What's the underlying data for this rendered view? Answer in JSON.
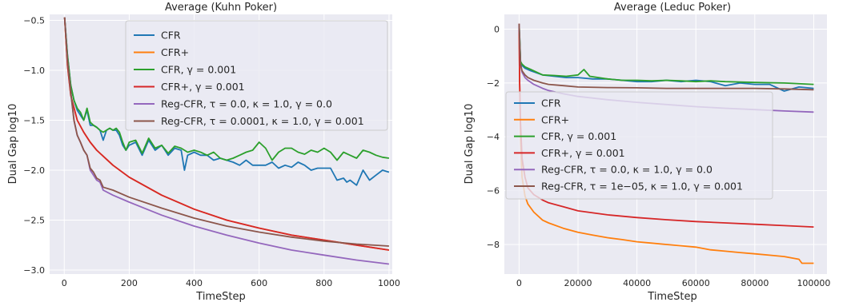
{
  "chart_data": [
    {
      "type": "line",
      "title": "Average (Kuhn Poker)",
      "xlabel": "TimeStep",
      "ylabel": "Dual Gap log10",
      "xlim": [
        -45,
        1010
      ],
      "ylim": [
        -3.04,
        -0.44
      ],
      "xticks": [
        0,
        200,
        400,
        600,
        800,
        1000
      ],
      "xtick_labels": [
        "0",
        "200",
        "400",
        "600",
        "800",
        "1000"
      ],
      "yticks": [
        -0.5,
        -1.0,
        -1.5,
        -2.0,
        -2.5,
        -3.0
      ],
      "ytick_labels": [
        "−0.5",
        "−1.0",
        "−1.5",
        "−2.0",
        "−2.5",
        "−3.0"
      ],
      "grid": true,
      "legend_position": "top-right",
      "series": [
        {
          "name": "CFR",
          "color": "#1f77b4",
          "x": [
            1,
            10,
            20,
            30,
            40,
            50,
            60,
            70,
            80,
            90,
            100,
            110,
            120,
            130,
            140,
            150,
            160,
            170,
            180,
            190,
            200,
            220,
            240,
            260,
            280,
            300,
            320,
            340,
            360,
            370,
            380,
            400,
            420,
            440,
            460,
            480,
            500,
            520,
            540,
            560,
            580,
            600,
            620,
            640,
            660,
            680,
            700,
            720,
            740,
            760,
            780,
            800,
            820,
            840,
            860,
            870,
            880,
            900,
            920,
            940,
            960,
            980,
            1000
          ],
          "y": [
            -0.47,
            -0.85,
            -1.15,
            -1.3,
            -1.4,
            -1.45,
            -1.5,
            -1.4,
            -1.55,
            -1.55,
            -1.57,
            -1.6,
            -1.7,
            -1.6,
            -1.58,
            -1.6,
            -1.6,
            -1.65,
            -1.75,
            -1.8,
            -1.75,
            -1.72,
            -1.85,
            -1.7,
            -1.8,
            -1.75,
            -1.85,
            -1.78,
            -1.8,
            -2.0,
            -1.85,
            -1.82,
            -1.85,
            -1.85,
            -1.9,
            -1.88,
            -1.9,
            -1.92,
            -1.95,
            -1.9,
            -1.95,
            -1.95,
            -1.95,
            -1.92,
            -1.98,
            -1.95,
            -1.97,
            -1.92,
            -1.95,
            -2.0,
            -1.98,
            -1.98,
            -1.98,
            -2.1,
            -2.08,
            -2.12,
            -2.1,
            -2.15,
            -2.0,
            -2.1,
            -2.05,
            -2.0,
            -2.02
          ]
        },
        {
          "name": "CFR+",
          "color": "#ff7f0e",
          "x": [
            1,
            10,
            20,
            40,
            60,
            80,
            100,
            150,
            200,
            300,
            400,
            500,
            600,
            700,
            800,
            900,
            1000
          ],
          "y": [
            -0.47,
            -0.95,
            -1.25,
            -1.5,
            -1.62,
            -1.72,
            -1.8,
            -1.95,
            -2.07,
            -2.25,
            -2.39,
            -2.5,
            -2.58,
            -2.65,
            -2.7,
            -2.75,
            -2.8
          ]
        },
        {
          "name": "CFR, γ = 0.001",
          "color": "#2ca02c",
          "x": [
            1,
            10,
            20,
            30,
            40,
            50,
            60,
            70,
            80,
            90,
            100,
            110,
            120,
            130,
            140,
            150,
            160,
            170,
            180,
            190,
            200,
            220,
            240,
            260,
            280,
            300,
            320,
            340,
            360,
            380,
            400,
            420,
            440,
            460,
            480,
            500,
            520,
            540,
            560,
            580,
            600,
            620,
            640,
            660,
            680,
            700,
            720,
            740,
            760,
            780,
            800,
            820,
            840,
            860,
            880,
            900,
            920,
            940,
            960,
            980,
            1000
          ],
          "y": [
            -0.47,
            -0.85,
            -1.15,
            -1.3,
            -1.38,
            -1.42,
            -1.5,
            -1.38,
            -1.52,
            -1.55,
            -1.57,
            -1.6,
            -1.62,
            -1.6,
            -1.58,
            -1.6,
            -1.58,
            -1.62,
            -1.72,
            -1.8,
            -1.72,
            -1.7,
            -1.83,
            -1.68,
            -1.78,
            -1.75,
            -1.83,
            -1.76,
            -1.78,
            -1.82,
            -1.8,
            -1.82,
            -1.85,
            -1.82,
            -1.88,
            -1.9,
            -1.88,
            -1.85,
            -1.82,
            -1.8,
            -1.72,
            -1.78,
            -1.9,
            -1.82,
            -1.78,
            -1.78,
            -1.82,
            -1.84,
            -1.8,
            -1.82,
            -1.78,
            -1.82,
            -1.9,
            -1.82,
            -1.85,
            -1.88,
            -1.8,
            -1.82,
            -1.85,
            -1.87,
            -1.88
          ]
        },
        {
          "name": "CFR+, γ = 0.001",
          "color": "#d62728",
          "x": [
            1,
            10,
            20,
            40,
            60,
            80,
            100,
            150,
            200,
            300,
            400,
            500,
            600,
            700,
            800,
            900,
            1000
          ],
          "y": [
            -0.47,
            -0.95,
            -1.25,
            -1.5,
            -1.62,
            -1.72,
            -1.8,
            -1.95,
            -2.07,
            -2.25,
            -2.39,
            -2.5,
            -2.58,
            -2.65,
            -2.7,
            -2.75,
            -2.8
          ]
        },
        {
          "name": "Reg-CFR, τ = 0.0, κ = 1.0, γ = 0.0",
          "color": "#9467bd",
          "x": [
            1,
            10,
            20,
            30,
            40,
            50,
            60,
            70,
            80,
            90,
            100,
            110,
            120,
            150,
            200,
            300,
            400,
            500,
            600,
            700,
            800,
            900,
            1000
          ],
          "y": [
            -0.47,
            -0.9,
            -1.22,
            -1.5,
            -1.65,
            -1.72,
            -1.8,
            -1.85,
            -2.0,
            -2.05,
            -2.1,
            -2.12,
            -2.2,
            -2.25,
            -2.32,
            -2.45,
            -2.56,
            -2.65,
            -2.73,
            -2.8,
            -2.85,
            -2.9,
            -2.94
          ]
        },
        {
          "name": "Reg-CFR, τ = 0.0001, κ = 1.0, γ = 0.001",
          "color": "#8c564b",
          "x": [
            1,
            10,
            20,
            30,
            40,
            50,
            60,
            70,
            80,
            90,
            100,
            110,
            120,
            150,
            200,
            300,
            400,
            500,
            600,
            700,
            800,
            900,
            1000
          ],
          "y": [
            -0.47,
            -0.9,
            -1.22,
            -1.5,
            -1.65,
            -1.72,
            -1.8,
            -1.85,
            -1.98,
            -2.02,
            -2.08,
            -2.1,
            -2.17,
            -2.2,
            -2.27,
            -2.38,
            -2.48,
            -2.56,
            -2.62,
            -2.67,
            -2.71,
            -2.74,
            -2.76
          ]
        }
      ]
    },
    {
      "type": "line",
      "title": "Average (Leduc Poker)",
      "xlabel": "TimeStep",
      "ylabel": "Dual Gap log10",
      "xlim": [
        -5000,
        104500
      ],
      "ylim": [
        -9.1,
        0.55
      ],
      "xticks": [
        0,
        20000,
        40000,
        60000,
        80000,
        100000
      ],
      "xtick_labels": [
        "0",
        "20000",
        "40000",
        "60000",
        "80000",
        "100000"
      ],
      "yticks": [
        0,
        -2,
        -4,
        -6,
        -8
      ],
      "ytick_labels": [
        "0",
        "−2",
        "−4",
        "−6",
        "−8"
      ],
      "grid": true,
      "legend_position": "center-left",
      "series": [
        {
          "name": "CFR",
          "color": "#1f77b4",
          "x": [
            1,
            200,
            500,
            1000,
            2000,
            4000,
            8000,
            12000,
            16000,
            20000,
            25000,
            30000,
            35000,
            40000,
            45000,
            50000,
            55000,
            60000,
            65000,
            70000,
            75000,
            80000,
            85000,
            90000,
            95000,
            100000
          ],
          "y": [
            0.2,
            -0.3,
            -1.2,
            -1.35,
            -1.45,
            -1.55,
            -1.7,
            -1.75,
            -1.8,
            -1.8,
            -1.85,
            -1.85,
            -1.9,
            -1.95,
            -1.95,
            -1.9,
            -1.95,
            -1.9,
            -1.95,
            -2.1,
            -2.0,
            -2.05,
            -2.05,
            -2.3,
            -2.15,
            -2.2
          ]
        },
        {
          "name": "CFR+",
          "color": "#ff7f0e",
          "x": [
            1,
            200,
            500,
            1000,
            2000,
            3000,
            5000,
            8000,
            10000,
            15000,
            20000,
            25000,
            30000,
            35000,
            40000,
            45000,
            50000,
            55000,
            60000,
            65000,
            70000,
            75000,
            80000,
            85000,
            90000,
            95000,
            96000,
            100000
          ],
          "y": [
            0.2,
            -2.0,
            -4.0,
            -5.5,
            -6.2,
            -6.5,
            -6.8,
            -7.1,
            -7.2,
            -7.4,
            -7.55,
            -7.65,
            -7.75,
            -7.82,
            -7.9,
            -7.95,
            -8.0,
            -8.05,
            -8.1,
            -8.2,
            -8.25,
            -8.3,
            -8.35,
            -8.4,
            -8.45,
            -8.55,
            -8.7,
            -8.7
          ]
        },
        {
          "name": "CFR, γ = 0.001",
          "color": "#2ca02c",
          "x": [
            1,
            200,
            500,
            1000,
            2000,
            4000,
            8000,
            12000,
            16000,
            20000,
            22000,
            24000,
            30000,
            35000,
            40000,
            45000,
            50000,
            55000,
            60000,
            65000,
            70000,
            80000,
            90000,
            100000
          ],
          "y": [
            0.2,
            -0.3,
            -1.2,
            -1.3,
            -1.4,
            -1.5,
            -1.7,
            -1.72,
            -1.75,
            -1.7,
            -1.5,
            -1.75,
            -1.85,
            -1.9,
            -1.9,
            -1.92,
            -1.9,
            -1.92,
            -1.95,
            -1.92,
            -1.95,
            -1.98,
            -2.0,
            -2.05
          ]
        },
        {
          "name": "CFR+, γ = 0.001",
          "color": "#d62728",
          "x": [
            1,
            200,
            500,
            1000,
            2000,
            3000,
            5000,
            8000,
            10000,
            15000,
            20000,
            30000,
            40000,
            50000,
            60000,
            70000,
            80000,
            90000,
            100000
          ],
          "y": [
            0.2,
            -2.0,
            -3.5,
            -4.8,
            -5.5,
            -5.9,
            -6.15,
            -6.35,
            -6.45,
            -6.6,
            -6.75,
            -6.9,
            -7.0,
            -7.08,
            -7.15,
            -7.2,
            -7.25,
            -7.3,
            -7.35
          ]
        },
        {
          "name": "Reg-CFR, τ = 0.0, κ = 1.0, γ = 0.0",
          "color": "#9467bd",
          "x": [
            1,
            200,
            500,
            1000,
            2000,
            3000,
            5000,
            8000,
            10000,
            15000,
            20000,
            30000,
            40000,
            50000,
            60000,
            70000,
            80000,
            90000,
            100000
          ],
          "y": [
            0.2,
            -0.5,
            -1.3,
            -1.6,
            -1.8,
            -1.9,
            -2.05,
            -2.2,
            -2.28,
            -2.4,
            -2.5,
            -2.62,
            -2.72,
            -2.8,
            -2.88,
            -2.94,
            -2.99,
            -3.04,
            -3.08
          ]
        },
        {
          "name": "Reg-CFR, τ = 1e−05, κ = 1.0, γ = 0.001",
          "color": "#8c564b",
          "x": [
            1,
            200,
            500,
            1000,
            2000,
            3000,
            5000,
            8000,
            10000,
            15000,
            20000,
            30000,
            40000,
            50000,
            60000,
            70000,
            80000,
            90000,
            100000
          ],
          "y": [
            0.2,
            -0.4,
            -1.3,
            -1.55,
            -1.7,
            -1.8,
            -1.9,
            -2.0,
            -2.05,
            -2.1,
            -2.15,
            -2.17,
            -2.18,
            -2.2,
            -2.2,
            -2.2,
            -2.2,
            -2.22,
            -2.25
          ]
        }
      ]
    }
  ]
}
